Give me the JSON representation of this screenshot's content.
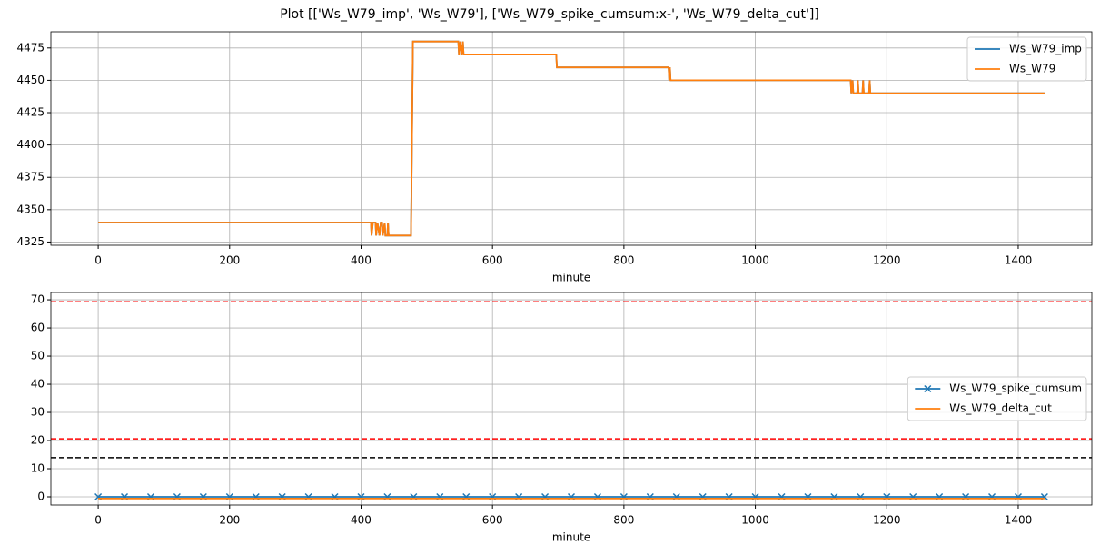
{
  "title": "Plot [['Ws_W79_imp', 'Ws_W79'], ['Ws_W79_spike_cumsum:x-', 'Ws_W79_delta_cut']]",
  "chart_data": [
    {
      "type": "line",
      "xlabel": "minute",
      "grid": true,
      "legend": "upper right",
      "xlim": [
        -72,
        1512
      ],
      "xticks": [
        0,
        200,
        400,
        600,
        800,
        1000,
        1200,
        1400
      ],
      "ylim": [
        4322.5,
        4487.5
      ],
      "yticks": [
        4325,
        4350,
        4375,
        4400,
        4425,
        4450,
        4475
      ],
      "x": [
        0,
        415,
        416,
        418,
        422,
        423,
        425,
        428,
        430,
        432,
        433,
        436,
        437,
        440,
        441,
        442,
        476,
        479,
        548,
        549,
        551,
        553,
        555,
        556,
        697,
        698,
        868,
        869,
        870,
        871,
        1145,
        1146,
        1148,
        1149,
        1155,
        1156,
        1157,
        1163,
        1164,
        1165,
        1173,
        1174,
        1175,
        1440
      ],
      "series": [
        {
          "name": "Ws_W79_imp",
          "color": "#1f77b4",
          "values": [
            4340,
            4340,
            4330,
            4340,
            4340,
            4330,
            4340,
            4330,
            4340,
            4340,
            4330,
            4340,
            4330,
            4330,
            4340,
            4330,
            4330,
            4480,
            4480,
            4470,
            4480,
            4470,
            4480,
            4470,
            4470,
            4460,
            4460,
            4450,
            4460,
            4450,
            4450,
            4440,
            4450,
            4440,
            4440,
            4450,
            4440,
            4440,
            4450,
            4440,
            4440,
            4450,
            4440,
            4440
          ]
        },
        {
          "name": "Ws_W79",
          "color": "#ff7f0e",
          "values": [
            4340,
            4340,
            4330,
            4340,
            4340,
            4330,
            4340,
            4330,
            4340,
            4340,
            4330,
            4340,
            4330,
            4330,
            4340,
            4330,
            4330,
            4480,
            4480,
            4470,
            4480,
            4470,
            4480,
            4470,
            4470,
            4460,
            4460,
            4450,
            4460,
            4450,
            4450,
            4440,
            4450,
            4440,
            4440,
            4450,
            4440,
            4440,
            4450,
            4440,
            4440,
            4450,
            4440,
            4440
          ]
        }
      ]
    },
    {
      "type": "line",
      "xlabel": "minute",
      "grid": true,
      "legend": "center right",
      "xlim": [
        -72,
        1512
      ],
      "xticks": [
        0,
        200,
        400,
        600,
        800,
        1000,
        1200,
        1400
      ],
      "ylim": [
        -2.9,
        72.6
      ],
      "yticks": [
        0,
        10,
        20,
        30,
        40,
        50,
        60,
        70
      ],
      "x": [
        0,
        40,
        80,
        120,
        160,
        200,
        240,
        280,
        320,
        360,
        400,
        440,
        480,
        520,
        560,
        600,
        640,
        680,
        720,
        760,
        800,
        840,
        880,
        920,
        960,
        1000,
        1040,
        1080,
        1120,
        1160,
        1200,
        1240,
        1280,
        1320,
        1360,
        1400,
        1440
      ],
      "series": [
        {
          "name": "Ws_W79_spike_cumsum",
          "color": "#1f77b4",
          "marker": "x",
          "values": [
            0,
            0,
            0,
            0,
            0,
            0,
            0,
            0,
            0,
            0,
            0,
            0,
            0,
            0,
            0,
            0,
            0,
            0,
            0,
            0,
            0,
            0,
            0,
            0,
            0,
            0,
            0,
            0,
            0,
            0,
            0,
            0,
            0,
            0,
            0,
            0,
            0
          ]
        },
        {
          "name": "Ws_W79_delta_cut",
          "color": "#ff7f0e",
          "values": [
            -0.6,
            -0.6,
            -0.6,
            -0.6,
            -0.6,
            -0.6,
            -0.6,
            -0.6,
            -0.6,
            -0.6,
            -0.6,
            -0.6,
            -0.6,
            -0.6,
            -0.6,
            -0.6,
            -0.6,
            -0.6,
            -0.6,
            -0.6,
            -0.6,
            -0.6,
            -0.6,
            -0.6,
            -0.6,
            -0.6,
            -0.6,
            -0.6,
            -0.6,
            -0.6,
            -0.6,
            -0.6,
            -0.6,
            -0.6,
            -0.6,
            -0.6,
            -0.6
          ]
        }
      ],
      "hlines": [
        {
          "y": 69.3,
          "color": "#ff0000"
        },
        {
          "y": 20.6,
          "color": "#ff0000"
        },
        {
          "y": 13.9,
          "color": "#000000"
        }
      ]
    }
  ]
}
